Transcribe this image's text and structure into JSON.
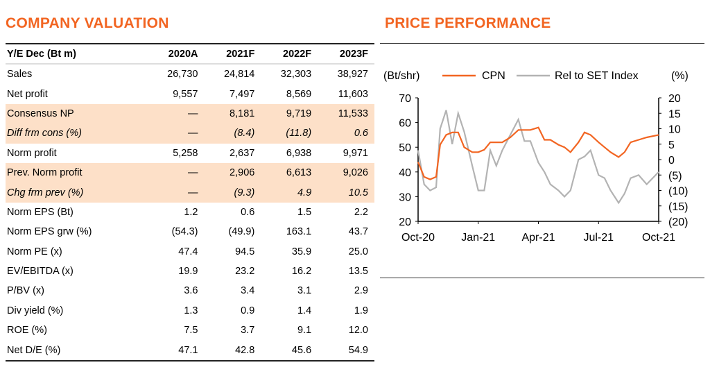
{
  "valuation": {
    "title": "COMPANY VALUATION",
    "headers": [
      "Y/E Dec (Bt m)",
      "2020A",
      "2021F",
      "2022F",
      "2023F"
    ],
    "rows": [
      {
        "label": "Sales",
        "values": [
          "26,730",
          "24,814",
          "32,303",
          "38,927"
        ],
        "highlight": false,
        "italic": false
      },
      {
        "label": "Net profit",
        "values": [
          "9,557",
          "7,497",
          "8,569",
          "11,603"
        ],
        "highlight": false,
        "italic": false
      },
      {
        "label": "Consensus NP",
        "values": [
          "—",
          "8,181",
          "9,719",
          "11,533"
        ],
        "highlight": true,
        "italic": false
      },
      {
        "label": "Diff frm cons (%)",
        "values": [
          "—",
          "(8.4)",
          "(11.8)",
          "0.6"
        ],
        "highlight": true,
        "italic": true
      },
      {
        "label": "Norm profit",
        "values": [
          "5,258",
          "2,637",
          "6,938",
          "9,971"
        ],
        "highlight": false,
        "italic": false
      },
      {
        "label": "Prev. Norm profit",
        "values": [
          "—",
          "2,906",
          "6,613",
          "9,026"
        ],
        "highlight": true,
        "italic": false
      },
      {
        "label": "Chg frm prev (%)",
        "values": [
          "—",
          "(9.3)",
          "4.9",
          "10.5"
        ],
        "highlight": true,
        "italic": true
      },
      {
        "label": "Norm EPS (Bt)",
        "values": [
          "1.2",
          "0.6",
          "1.5",
          "2.2"
        ],
        "highlight": false,
        "italic": false
      },
      {
        "label": "Norm EPS grw (%)",
        "values": [
          "(54.3)",
          "(49.9)",
          "163.1",
          "43.7"
        ],
        "highlight": false,
        "italic": false
      },
      {
        "label": "Norm PE (x)",
        "values": [
          "47.4",
          "94.5",
          "35.9",
          "25.0"
        ],
        "highlight": false,
        "italic": false
      },
      {
        "label": "EV/EBITDA (x)",
        "values": [
          "19.9",
          "23.2",
          "16.2",
          "13.5"
        ],
        "highlight": false,
        "italic": false
      },
      {
        "label": "P/BV (x)",
        "values": [
          "3.6",
          "3.4",
          "3.1",
          "2.9"
        ],
        "highlight": false,
        "italic": false
      },
      {
        "label": "Div yield (%)",
        "values": [
          "1.3",
          "0.9",
          "1.4",
          "1.9"
        ],
        "highlight": false,
        "italic": false
      },
      {
        "label": "ROE (%)",
        "values": [
          "7.5",
          "3.7",
          "9.1",
          "12.0"
        ],
        "highlight": false,
        "italic": false
      },
      {
        "label": "Net D/E (%)",
        "values": [
          "47.1",
          "42.8",
          "45.6",
          "54.9"
        ],
        "highlight": false,
        "italic": false
      }
    ]
  },
  "chart_data": {
    "title": "PRICE PERFORMANCE",
    "type": "line",
    "ylabel_left": "(Bt/shr)",
    "ylabel_right": "(%)",
    "xticks": [
      "Oct-20",
      "Jan-21",
      "Apr-21",
      "Jul-21",
      "Oct-21"
    ],
    "ylim_left": [
      20,
      70
    ],
    "yticks_left": [
      "20",
      "30",
      "40",
      "50",
      "60",
      "70"
    ],
    "ylim_right": [
      -20,
      20
    ],
    "yticks_right": [
      "(20)",
      "(15)",
      "(10)",
      "(5)",
      "0",
      "5",
      "10",
      "15",
      "20"
    ],
    "legend_placement": "top",
    "x_months": [
      0,
      0.3,
      0.6,
      0.9,
      1.1,
      1.4,
      1.7,
      2.0,
      2.3,
      2.7,
      3.0,
      3.3,
      3.6,
      3.9,
      4.2,
      4.6,
      5.0,
      5.3,
      5.6,
      6.0,
      6.3,
      6.6,
      7.0,
      7.3,
      7.6,
      8.0,
      8.3,
      8.6,
      9.0,
      9.3,
      9.6,
      10.0,
      10.3,
      10.6,
      11.0,
      11.4,
      12.0
    ],
    "series": [
      {
        "name": "CPN",
        "color": "#f26522",
        "values": [
          44,
          38,
          37,
          38,
          51,
          55,
          56,
          56,
          50,
          48,
          48,
          49,
          52,
          52,
          52,
          54,
          57,
          57,
          57,
          58,
          53,
          53,
          51,
          50,
          48,
          52,
          56,
          55,
          52,
          50,
          48,
          46,
          48,
          52,
          53,
          54,
          55
        ]
      },
      {
        "name": "Rel to SET Index",
        "color": "#b3b3b3",
        "values": [
          3,
          -8,
          -10,
          -9,
          10,
          16,
          5,
          15,
          9,
          -2,
          -10,
          -10,
          3,
          -2,
          3,
          8,
          13,
          6,
          6,
          -1,
          -4,
          -8,
          -10,
          -12,
          -10,
          0,
          1,
          3,
          -5,
          -6,
          -10,
          -14,
          -11,
          -6,
          -5,
          -8,
          -4
        ]
      }
    ]
  }
}
